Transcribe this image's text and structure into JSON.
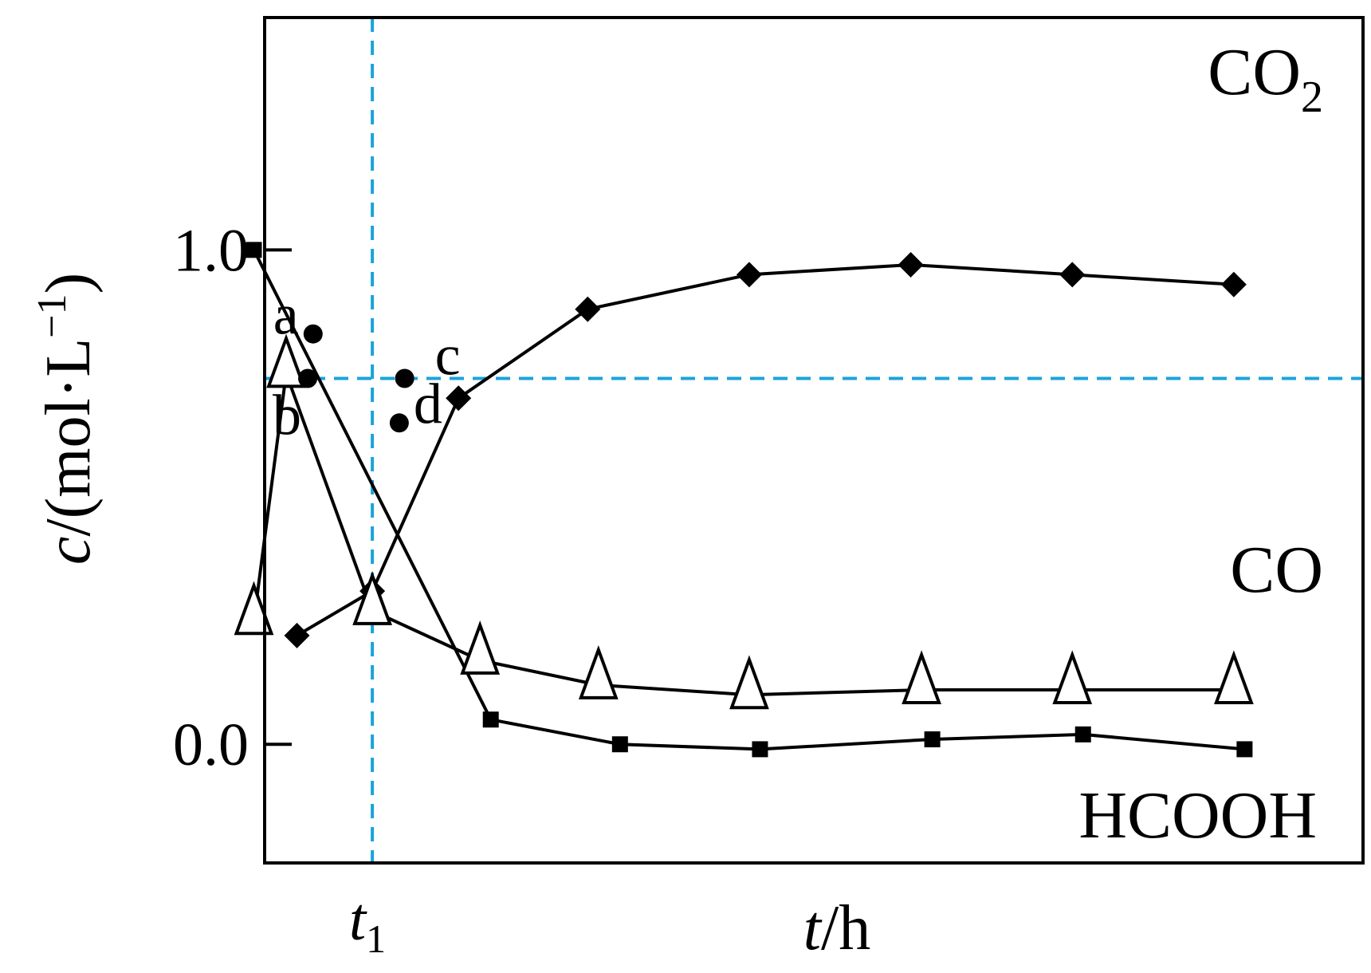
{
  "chart_data": {
    "type": "line",
    "xlabel": {
      "italic": "t",
      "rest": "/h"
    },
    "ylabel": {
      "italic": "c",
      "rest": "/(mol·L",
      "sup": "−1",
      "close": ")"
    },
    "yticks": [
      {
        "value": 0.0,
        "label": "0.0"
      },
      {
        "value": 1.0,
        "label": "1.0"
      }
    ],
    "xticks": [
      {
        "value": 1.0,
        "label": "t",
        "sub": "1"
      }
    ],
    "xlim": [
      0,
      10.2
    ],
    "ylim": [
      -0.24,
      1.47
    ],
    "series": [
      {
        "name": "CO₂",
        "marker": "diamond",
        "x": [
          0.3,
          1.0,
          1.8,
          3.0,
          4.5,
          6.0,
          7.5,
          9.0
        ],
        "y": [
          0.22,
          0.31,
          0.7,
          0.88,
          0.95,
          0.97,
          0.95,
          0.93
        ]
      },
      {
        "name": "CO",
        "marker": "open-triangle",
        "x": [
          -0.1,
          0.2,
          1.0,
          2.0,
          3.1,
          4.5,
          6.1,
          7.5,
          9.0
        ],
        "y": [
          0.25,
          0.75,
          0.27,
          0.17,
          0.12,
          0.1,
          0.11,
          0.11,
          0.11
        ]
      },
      {
        "name": "HCOOH",
        "marker": "square",
        "x": [
          -0.1,
          2.1,
          3.3,
          4.6,
          6.2,
          7.6,
          9.1
        ],
        "y": [
          1.0,
          0.05,
          0.0,
          -0.01,
          0.01,
          0.02,
          -0.01
        ]
      }
    ],
    "series_labels": [
      {
        "text": "CO",
        "sub": "2"
      },
      {
        "text": "CO",
        "sub": ""
      },
      {
        "text": "HCOOH",
        "sub": ""
      }
    ],
    "reference_lines": [
      {
        "axis": "x",
        "value": 1.0,
        "color": "#1BA3DC"
      },
      {
        "axis": "y",
        "value": 0.74,
        "color": "#1BA3DC"
      }
    ],
    "points": [
      {
        "label": "a",
        "x": 0.45,
        "y": 0.83
      },
      {
        "label": "b",
        "x": 0.4,
        "y": 0.74
      },
      {
        "label": "c",
        "x": 1.3,
        "y": 0.74
      },
      {
        "label": "d",
        "x": 1.25,
        "y": 0.65
      }
    ],
    "grid": false,
    "legend": "none",
    "colors": {
      "line": "#000000",
      "reference": "#1BA3DC",
      "background": "#ffffff"
    }
  }
}
